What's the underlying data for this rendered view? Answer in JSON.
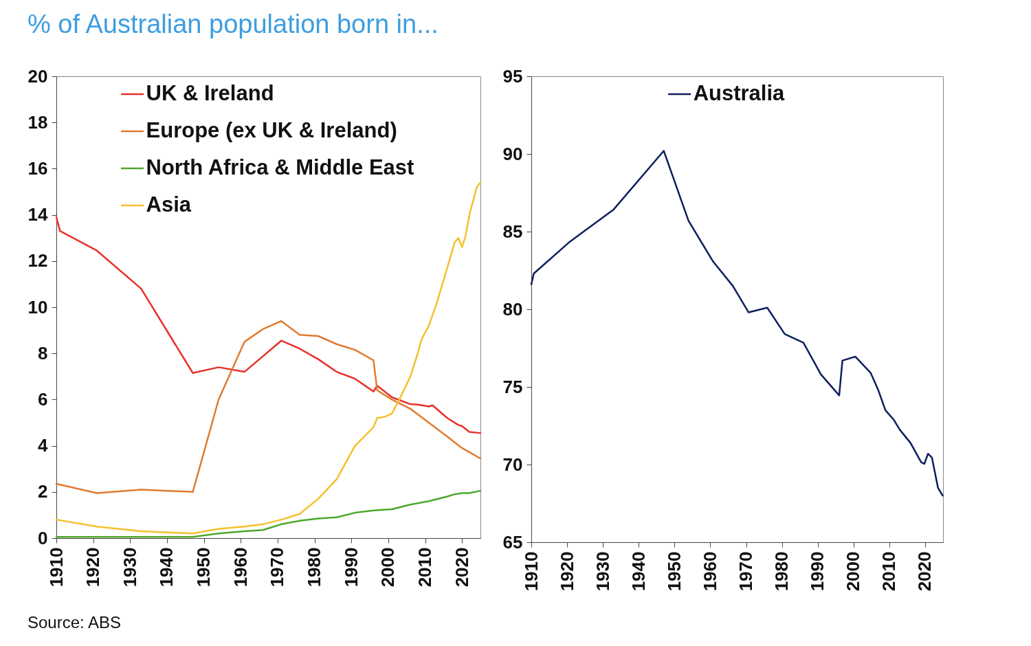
{
  "chart_data": [
    {
      "type": "line",
      "title": "% of Australian population born in...",
      "annotations": [
        "Source: ABS"
      ],
      "legend": "top left",
      "xlim": [
        1910,
        2025
      ],
      "xticks": [
        1910,
        1920,
        1930,
        1940,
        1950,
        1960,
        1970,
        1980,
        1990,
        2000,
        2010,
        2020
      ],
      "ylim": [
        0,
        20
      ],
      "yticks": [
        0,
        2,
        4,
        6,
        8,
        10,
        12,
        14,
        16,
        18,
        20
      ],
      "series": [
        {
          "name": "UK & Ireland",
          "color": "#e8302a",
          "x": [
            1910,
            1911,
            1921,
            1933,
            1947,
            1954,
            1961,
            1971,
            1976,
            1981,
            1986,
            1991,
            1996,
            1997,
            2001,
            2006,
            2008,
            2011,
            2012,
            2016,
            2019,
            2020,
            2022,
            2025
          ],
          "values": [
            13.9,
            13.3,
            12.45,
            10.8,
            7.15,
            7.4,
            7.2,
            8.55,
            8.2,
            7.75,
            7.2,
            6.9,
            6.35,
            6.6,
            6.1,
            5.8,
            5.78,
            5.7,
            5.75,
            5.2,
            4.9,
            4.85,
            4.6,
            4.55
          ]
        },
        {
          "name": "Europe (ex UK & Ireland)",
          "color": "#e07b30",
          "x": [
            1910,
            1921,
            1933,
            1947,
            1954,
            1961,
            1966,
            1971,
            1976,
            1981,
            1986,
            1991,
            1996,
            1997,
            2001,
            2006,
            2011,
            2016,
            2020,
            2025
          ],
          "values": [
            2.35,
            1.95,
            2.1,
            2.0,
            6.0,
            8.5,
            9.05,
            9.4,
            8.8,
            8.75,
            8.4,
            8.15,
            7.7,
            6.4,
            6.0,
            5.6,
            5.0,
            4.4,
            3.9,
            3.45
          ]
        },
        {
          "name": "North Africa & Middle East",
          "color": "#4ea72e",
          "x": [
            1910,
            1921,
            1933,
            1947,
            1954,
            1961,
            1966,
            1971,
            1976,
            1981,
            1986,
            1991,
            1996,
            2001,
            2006,
            2011,
            2016,
            2018,
            2020,
            2022,
            2025
          ],
          "values": [
            0.05,
            0.05,
            0.05,
            0.05,
            0.2,
            0.3,
            0.35,
            0.6,
            0.75,
            0.85,
            0.9,
            1.1,
            1.2,
            1.25,
            1.45,
            1.6,
            1.8,
            1.9,
            1.95,
            1.95,
            2.05
          ]
        },
        {
          "name": "Asia",
          "color": "#f5c02c",
          "x": [
            1910,
            1921,
            1933,
            1947,
            1954,
            1961,
            1966,
            1971,
            1976,
            1981,
            1986,
            1991,
            1996,
            1997,
            1999,
            2001,
            2003,
            2006,
            2008,
            2009,
            2011,
            2013,
            2016,
            2018,
            2019,
            2020,
            2021,
            2022,
            2024,
            2025
          ],
          "values": [
            0.8,
            0.5,
            0.3,
            0.2,
            0.4,
            0.5,
            0.6,
            0.8,
            1.05,
            1.7,
            2.55,
            4.0,
            4.8,
            5.2,
            5.25,
            5.4,
            6.0,
            7.0,
            8.0,
            8.6,
            9.2,
            10.1,
            11.7,
            12.8,
            13.0,
            12.6,
            13.1,
            14.0,
            15.2,
            15.4
          ]
        }
      ]
    },
    {
      "type": "line",
      "legend": "top",
      "xlim": [
        1910,
        2025
      ],
      "xticks": [
        1910,
        1920,
        1930,
        1940,
        1950,
        1960,
        1970,
        1980,
        1990,
        2000,
        2010,
        2020
      ],
      "ylim": [
        65,
        95
      ],
      "yticks": [
        65,
        70,
        75,
        80,
        85,
        90,
        95
      ],
      "series": [
        {
          "name": "Australia",
          "color": "#0d1f5c",
          "x": [
            1910,
            1910.7,
            1920.5,
            1932.9,
            1947,
            1953.9,
            1960.7,
            1966.3,
            1970.7,
            1975.9,
            1980.8,
            1986,
            1990.9,
            1996,
            1996.9,
            2000.5,
            2004.8,
            2006.9,
            2008.9,
            2011.2,
            2012.9,
            2015.9,
            2018.9,
            2019.8,
            2020.8,
            2021.9,
            2023.6,
            2024.9
          ],
          "values": [
            81.6,
            82.3,
            84.3,
            86.4,
            90.2,
            85.7,
            83.1,
            81.5,
            79.8,
            80.1,
            78.4,
            77.85,
            75.8,
            74.45,
            76.7,
            76.95,
            75.9,
            74.8,
            73.5,
            72.9,
            72.25,
            71.4,
            70.15,
            70.05,
            70.7,
            70.45,
            68.5,
            68.0
          ]
        }
      ]
    }
  ]
}
